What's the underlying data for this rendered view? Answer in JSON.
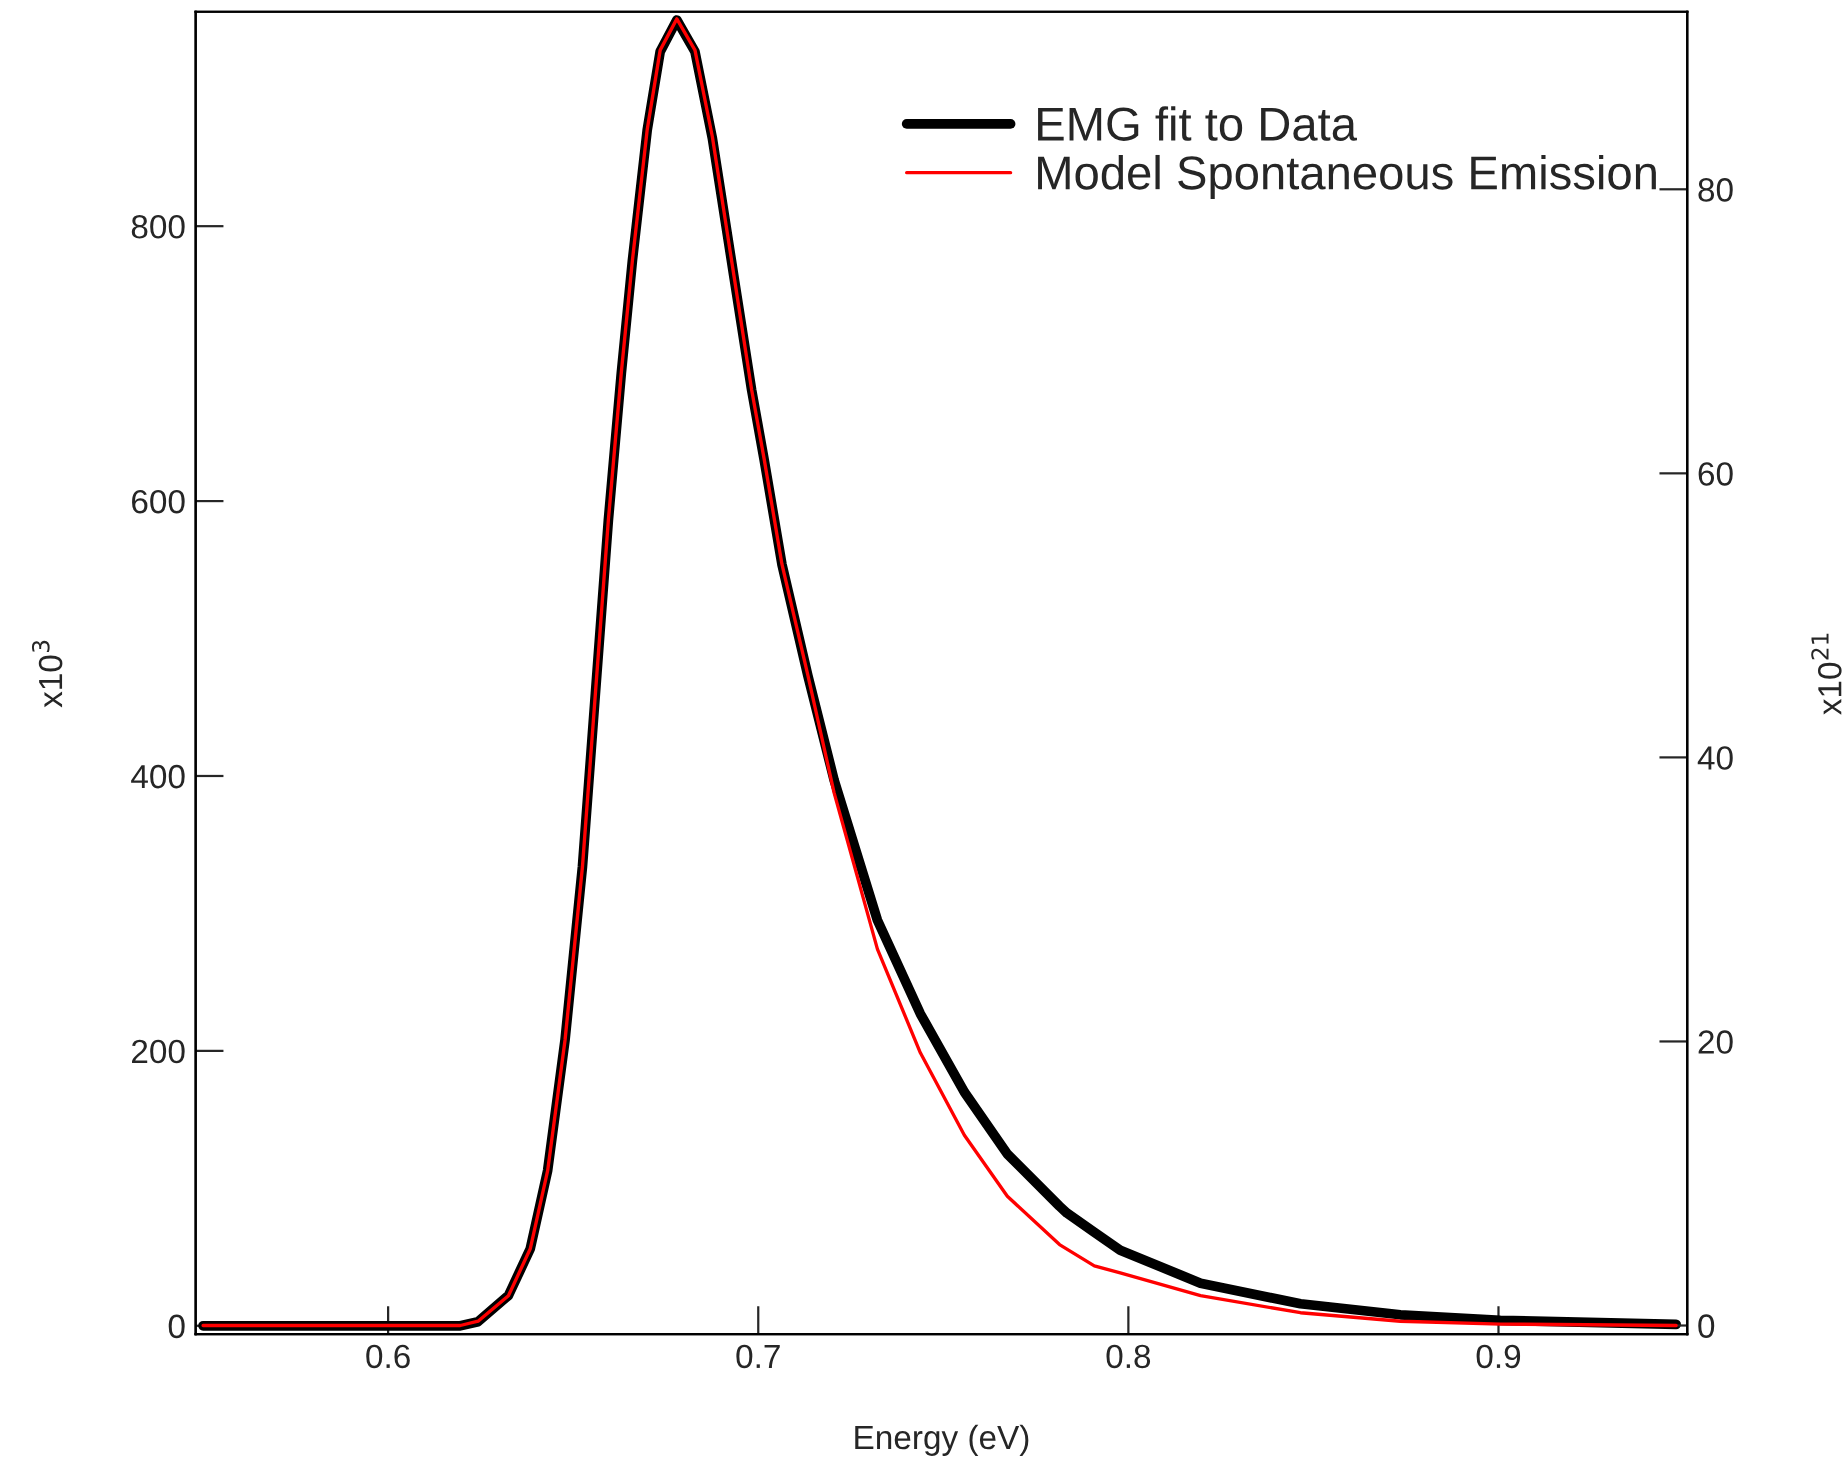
{
  "chart_data": {
    "type": "line",
    "xlabel": "Energy (eV)",
    "ylabel": "x10$^{3}$",
    "y2label": "x10$^{21}$",
    "xlim": [
      0.548,
      0.951
    ],
    "xticks": [
      0.6,
      0.7,
      0.8,
      0.9
    ],
    "ylim": [
      -6,
      956
    ],
    "yticks": [
      0,
      200,
      400,
      600,
      800
    ],
    "y2lim": [
      -0.6,
      92.5
    ],
    "y2ticks": [
      0,
      20,
      40,
      60,
      80
    ],
    "grid": false,
    "legend": "top right",
    "series": [
      {
        "name": "EMG fit to Data",
        "color": "#000000",
        "x": [
          0.55,
          0.6195,
          0.6243,
          0.6325,
          0.6384,
          0.6431,
          0.6478,
          0.6525,
          0.656,
          0.6595,
          0.663,
          0.666,
          0.67,
          0.6735,
          0.678,
          0.6829,
          0.6876,
          0.6935,
          0.6982,
          0.7016,
          0.7064,
          0.7134,
          0.7205,
          0.7322,
          0.7438,
          0.7557,
          0.7673,
          0.7814,
          0.7834,
          0.7908,
          0.7978,
          0.8195,
          0.8465,
          0.8735,
          0.9005,
          0.948
        ],
        "values": [
          0,
          0,
          3,
          22,
          56,
          113,
          208,
          334,
          460,
          586,
          693,
          775,
          870,
          927,
          950,
          927,
          864,
          762,
          681,
          630,
          554,
          473,
          397,
          295,
          227,
          170,
          125,
          87,
          82,
          68,
          55,
          31,
          16,
          8,
          4,
          1
        ]
      },
      {
        "name": "Model Spontaneous Emission",
        "color": "#ff0000",
        "axis": "y2",
        "x": [
          0.55,
          0.6195,
          0.6243,
          0.6325,
          0.6384,
          0.6431,
          0.6478,
          0.6525,
          0.656,
          0.6595,
          0.663,
          0.666,
          0.67,
          0.6735,
          0.678,
          0.6829,
          0.6876,
          0.6935,
          0.6982,
          0.7016,
          0.7064,
          0.7134,
          0.7205,
          0.7322,
          0.7438,
          0.7557,
          0.7673,
          0.7814,
          0.7908,
          0.7978,
          0.8195,
          0.8465,
          0.8735,
          0.9005,
          0.948
        ],
        "values": [
          0,
          0,
          0.3,
          2.1,
          5.4,
          10.9,
          20.1,
          32.3,
          44.5,
          56.7,
          67.1,
          75.0,
          84.2,
          89.8,
          92.0,
          89.8,
          83.7,
          73.8,
          65.9,
          61.0,
          53.6,
          45.8,
          37.5,
          26.5,
          19.2,
          13.4,
          9.1,
          5.7,
          4.2,
          3.7,
          2.1,
          0.9,
          0.3,
          0.1,
          0
        ]
      }
    ]
  }
}
